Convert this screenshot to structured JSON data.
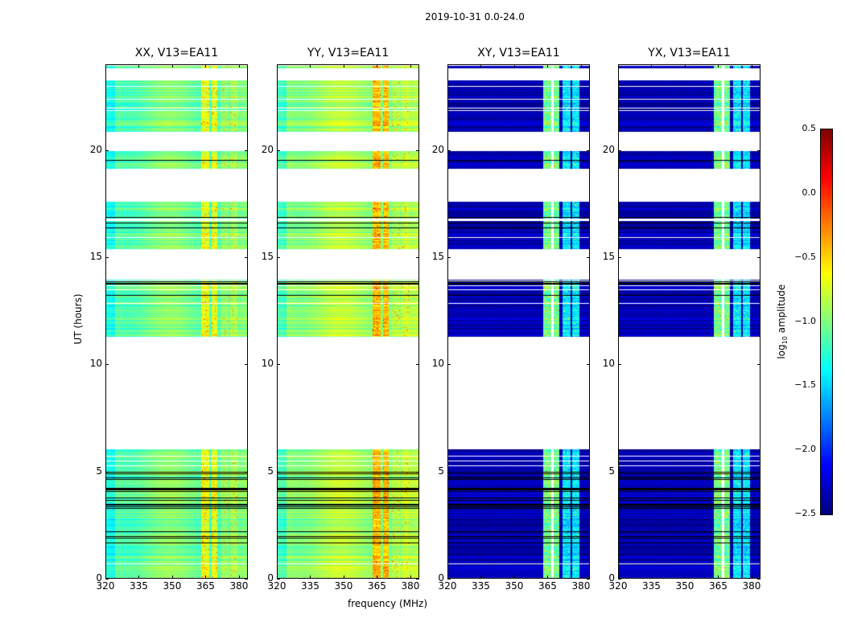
{
  "chart_data": {
    "type": "heatmap",
    "title": "2019-10-31 0.0-24.0",
    "xlabel": "frequency (MHz)",
    "ylabel": "UT (hours)",
    "xlim": [
      320,
      384
    ],
    "ylim": [
      0,
      24
    ],
    "xticks": [
      "320",
      "335",
      "350",
      "365",
      "380"
    ],
    "yticks": [
      "0",
      "5",
      "10",
      "15",
      "20"
    ],
    "panels": [
      {
        "pol": "XX",
        "title": "XX, V13=EA11",
        "base": -1.05
      },
      {
        "pol": "YY",
        "title": "YY, V13=EA11",
        "base": -0.9
      },
      {
        "pol": "XY",
        "title": "XY, V13=EA11",
        "base": -2.35
      },
      {
        "pol": "YX",
        "title": "YX, V13=EA11",
        "base": -2.35
      }
    ],
    "data_time_ranges_hours": [
      [
        0.0,
        6.05
      ],
      [
        11.3,
        13.95
      ],
      [
        15.4,
        17.6
      ],
      [
        19.15,
        19.95
      ],
      [
        20.9,
        23.3
      ],
      [
        23.85,
        24.0
      ]
    ],
    "bright_bands_mhz": [
      {
        "range": [
          363,
          366.5
        ],
        "boost": {
          "XX": 0.45,
          "YY": 0.55,
          "XY": 1.3,
          "YX": 1.3
        }
      },
      {
        "range": [
          367.5,
          370
        ],
        "boost": {
          "XX": 0.45,
          "YY": 0.55,
          "XY": 1.3,
          "YX": 1.3
        }
      },
      {
        "range": [
          371.5,
          375
        ],
        "boost": {
          "XX": 0.15,
          "YY": 0.1,
          "XY": 0.9,
          "YX": 0.9
        }
      },
      {
        "range": [
          376,
          379
        ],
        "boost": {
          "XX": 0.15,
          "YY": 0.1,
          "XY": 0.9,
          "YX": 0.9
        }
      }
    ],
    "flagged_dense_range_hours": [
      1.5,
      5.0
    ],
    "colorbar": {
      "label": "log10 amplitude",
      "label_main": "log",
      "label_sub": "10",
      "label_rest": " amplitude",
      "range": [
        -2.5,
        0.5
      ],
      "ticks": [
        "0.5",
        "0.0",
        "−0.5",
        "−1.0",
        "−1.5",
        "−2.0",
        "−2.5"
      ],
      "colormap": "jet"
    }
  }
}
